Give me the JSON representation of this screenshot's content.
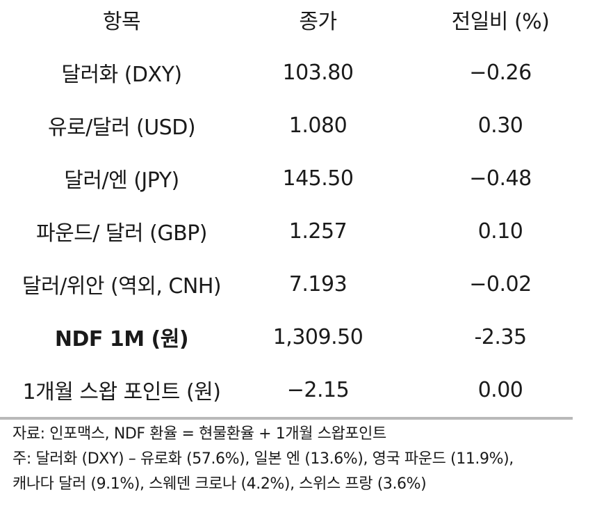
{
  "table": {
    "headers": [
      "항목",
      "종가",
      "전일비 (%)"
    ],
    "rows": [
      {
        "item": "달러화 (DXY)",
        "close": "103.80",
        "change": "−0.26"
      },
      {
        "item": "유로/달러 (USD)",
        "close": "1.080",
        "change": "0.30"
      },
      {
        "item": "달러/엔 (JPY)",
        "close": "145.50",
        "change": "−0.48"
      },
      {
        "item": "파운드/ 달러 (GBP)",
        "close": "1.257",
        "change": "0.10"
      },
      {
        "item": "달러/위안 (역외, CNH)",
        "close": "7.193",
        "change": "−0.02"
      },
      {
        "item": "NDF 1M (원)",
        "close": "1,309.50",
        "change": "-2.35"
      },
      {
        "item": "1개월 스왑 포인트 (원)",
        "close": "−2.15",
        "change": "0.00"
      }
    ]
  },
  "notes": {
    "source": "자료: 인포맥스, NDF 환율 = 현물환율 + 1개월 스왑포인트",
    "note_line1": "주: 달러화 (DXY) – 유로화 (57.6%), 일본 엔 (13.6%), 영국 파운드 (11.9%),",
    "note_line2": "캐나다 달러 (9.1%), 스웨덴 크로나 (4.2%), 스위스 프랑 (3.6%)"
  }
}
